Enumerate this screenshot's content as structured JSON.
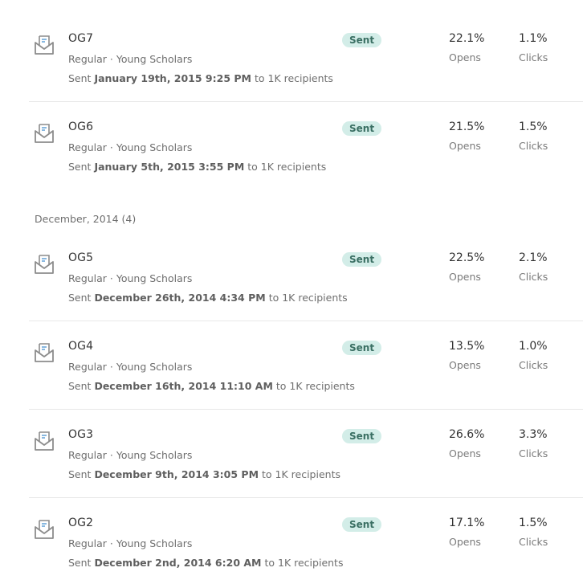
{
  "group_header": "December, 2014 (4)",
  "campaigns": [
    {
      "name": "OG7",
      "meta": "Regular · Young Scholars",
      "sent_prefix": "Sent",
      "sent_date": "January 19th, 2015 9:25 PM",
      "sent_suffix": "to 1K recipients",
      "status": "Sent",
      "opens_value": "22.1%",
      "opens_label": "Opens",
      "clicks_value": "1.1%",
      "clicks_label": "Clicks"
    },
    {
      "name": "OG6",
      "meta": "Regular · Young Scholars",
      "sent_prefix": "Sent",
      "sent_date": "January 5th, 2015 3:55 PM",
      "sent_suffix": "to 1K recipients",
      "status": "Sent",
      "opens_value": "21.5%",
      "opens_label": "Opens",
      "clicks_value": "1.5%",
      "clicks_label": "Clicks"
    },
    {
      "name": "OG5",
      "meta": "Regular · Young Scholars",
      "sent_prefix": "Sent",
      "sent_date": "December 26th, 2014 4:34 PM",
      "sent_suffix": "to 1K recipients",
      "status": "Sent",
      "opens_value": "22.5%",
      "opens_label": "Opens",
      "clicks_value": "2.1%",
      "clicks_label": "Clicks"
    },
    {
      "name": "OG4",
      "meta": "Regular · Young Scholars",
      "sent_prefix": "Sent",
      "sent_date": "December 16th, 2014 11:10 AM",
      "sent_suffix": "to 1K recipients",
      "status": "Sent",
      "opens_value": "13.5%",
      "opens_label": "Opens",
      "clicks_value": "1.0%",
      "clicks_label": "Clicks"
    },
    {
      "name": "OG3",
      "meta": "Regular · Young Scholars",
      "sent_prefix": "Sent",
      "sent_date": "December 9th, 2014 3:05 PM",
      "sent_suffix": "to 1K recipients",
      "status": "Sent",
      "opens_value": "26.6%",
      "opens_label": "Opens",
      "clicks_value": "3.3%",
      "clicks_label": "Clicks"
    },
    {
      "name": "OG2",
      "meta": "Regular · Young Scholars",
      "sent_prefix": "Sent",
      "sent_date": "December 2nd, 2014 6:20 AM",
      "sent_suffix": "to 1K recipients",
      "status": "Sent",
      "opens_value": "17.1%",
      "opens_label": "Opens",
      "clicks_value": "1.5%",
      "clicks_label": "Clicks"
    }
  ],
  "icon": "envelope-icon",
  "colors": {
    "badge_bg": "#d3ede8",
    "badge_text": "#3a6f63",
    "icon_stroke": "#8c8c8c",
    "icon_accent": "#6aa6d8"
  }
}
